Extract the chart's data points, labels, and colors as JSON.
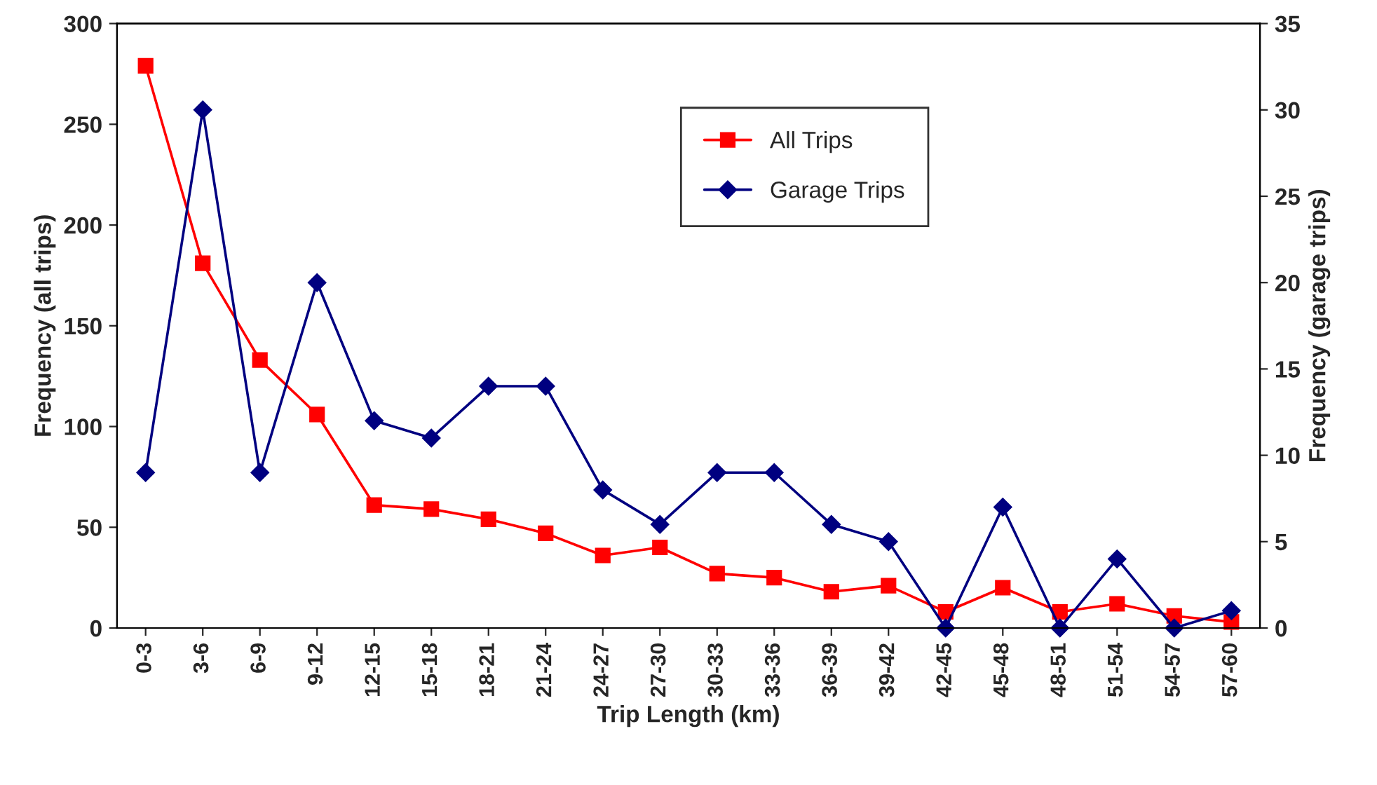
{
  "chart_data": {
    "type": "line",
    "xlabel": "Trip Length (km)",
    "ylabel": "Frequency (all trips)",
    "y2label": "Frequency (garage trips)",
    "categories": [
      "0-3",
      "3-6",
      "6-9",
      "9-12",
      "12-15",
      "15-18",
      "18-21",
      "21-24",
      "24-27",
      "27-30",
      "30-33",
      "33-36",
      "36-39",
      "39-42",
      "42-45",
      "45-48",
      "48-51",
      "51-54",
      "54-57",
      "57-60"
    ],
    "series": [
      {
        "name": "All Trips",
        "color": "#ff0000",
        "marker": "square",
        "values": [
          279,
          181,
          133,
          106,
          61,
          59,
          54,
          47,
          36,
          40,
          27,
          25,
          18,
          21,
          8,
          20,
          8,
          12,
          6,
          3
        ]
      },
      {
        "name": "Garage Trips",
        "color": "#000080",
        "marker": "diamond",
        "axis": "y2",
        "values": [
          9,
          30,
          9,
          20,
          12,
          11,
          14,
          14,
          8,
          6,
          9,
          9,
          6,
          5,
          0,
          7,
          0,
          4,
          0,
          1
        ]
      }
    ],
    "ylim": [
      0,
      300
    ],
    "yticks": [
      0,
      50,
      100,
      150,
      200,
      250,
      300
    ],
    "y2lim": [
      0,
      35
    ],
    "y2ticks": [
      0,
      5,
      10,
      15,
      20,
      25,
      30,
      35
    ],
    "grid": false,
    "legend": "top right",
    "line_style": "solid"
  }
}
